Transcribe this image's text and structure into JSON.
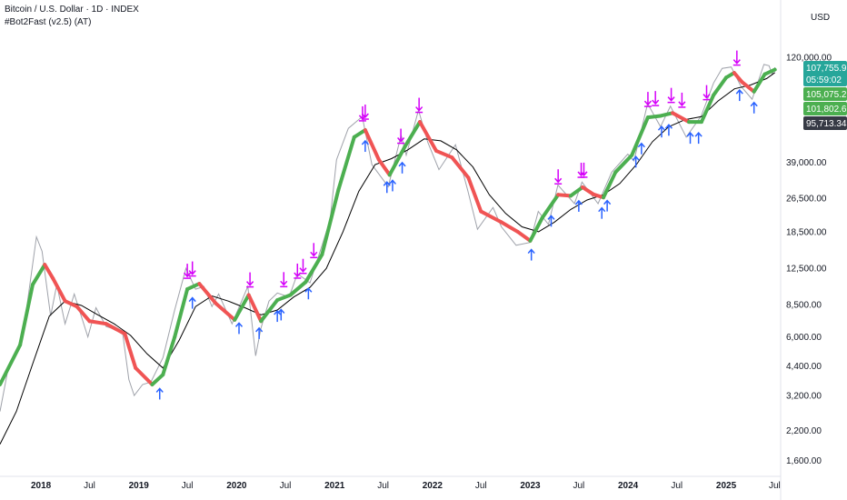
{
  "header": {
    "symbol_line": "Bitcoin / U.S. Dollar · 1D · INDEX",
    "indicator_line": "#Bot2Fast (v2.5) (AT)"
  },
  "colors": {
    "up": "#4caf50",
    "down": "#f05454",
    "slow_ma": "#000000",
    "buy_arrow": "#2962ff",
    "sell_arrow": "#d500f9",
    "price_badge": "#26a69a",
    "green_badge": "#4caf50",
    "dark_badge": "#363a45"
  },
  "chart_data": {
    "type": "line",
    "title": "Bitcoin / U.S. Dollar · 1D · INDEX",
    "y_scale": "log",
    "currency_label": "USD",
    "ylim": [
      1400,
      150000
    ],
    "xlim": [
      "2017-08-01",
      "2025-07-20"
    ],
    "y_ticks": [
      {
        "v": 120000,
        "label": "120,000.00"
      },
      {
        "v": 39000,
        "label": "39,000.00"
      },
      {
        "v": 26500,
        "label": "26,500.00"
      },
      {
        "v": 18500,
        "label": "18,500.00"
      },
      {
        "v": 12500,
        "label": "12,500.00"
      },
      {
        "v": 8500,
        "label": "8,500.00"
      },
      {
        "v": 6000,
        "label": "6,000.00"
      },
      {
        "v": 4400,
        "label": "4,400.00"
      },
      {
        "v": 3200,
        "label": "3,200.00"
      },
      {
        "v": 2200,
        "label": "2,200.00"
      },
      {
        "v": 1600,
        "label": "1,600.00"
      }
    ],
    "x_ticks": [
      {
        "t": "2018-01-01",
        "label": "2018",
        "major": true
      },
      {
        "t": "2018-07-01",
        "label": "Jul",
        "major": false
      },
      {
        "t": "2019-01-01",
        "label": "2019",
        "major": true
      },
      {
        "t": "2019-07-01",
        "label": "Jul",
        "major": false
      },
      {
        "t": "2020-01-01",
        "label": "2020",
        "major": true
      },
      {
        "t": "2020-07-01",
        "label": "Jul",
        "major": false
      },
      {
        "t": "2021-01-01",
        "label": "2021",
        "major": true
      },
      {
        "t": "2021-07-01",
        "label": "Jul",
        "major": false
      },
      {
        "t": "2022-01-01",
        "label": "2022",
        "major": true
      },
      {
        "t": "2022-07-01",
        "label": "Jul",
        "major": false
      },
      {
        "t": "2023-01-01",
        "label": "2023",
        "major": true
      },
      {
        "t": "2023-07-01",
        "label": "Jul",
        "major": false
      },
      {
        "t": "2024-01-01",
        "label": "2024",
        "major": true
      },
      {
        "t": "2024-07-01",
        "label": "Jul",
        "major": false
      },
      {
        "t": "2025-01-01",
        "label": "2025",
        "major": true
      },
      {
        "t": "2025-07-01",
        "label": "Jul",
        "major": false
      }
    ],
    "price": [
      [
        "2017-08-01",
        2700
      ],
      [
        "2017-09-01",
        4300
      ],
      [
        "2017-10-01",
        5000
      ],
      [
        "2017-11-01",
        7000
      ],
      [
        "2017-12-15",
        17500
      ],
      [
        "2018-01-05",
        15000
      ],
      [
        "2018-02-06",
        7500
      ],
      [
        "2018-03-01",
        10500
      ],
      [
        "2018-04-01",
        6900
      ],
      [
        "2018-05-05",
        9500
      ],
      [
        "2018-06-25",
        6000
      ],
      [
        "2018-07-25",
        8200
      ],
      [
        "2018-09-01",
        6700
      ],
      [
        "2018-11-01",
        6350
      ],
      [
        "2018-11-25",
        3800
      ],
      [
        "2018-12-15",
        3200
      ],
      [
        "2019-01-15",
        3600
      ],
      [
        "2019-02-15",
        3700
      ],
      [
        "2019-04-01",
        4800
      ],
      [
        "2019-05-15",
        8000
      ],
      [
        "2019-06-26",
        12500
      ],
      [
        "2019-08-01",
        10000
      ],
      [
        "2019-09-01",
        10300
      ],
      [
        "2019-10-01",
        8300
      ],
      [
        "2019-10-26",
        9500
      ],
      [
        "2019-12-15",
        6900
      ],
      [
        "2020-02-12",
        10300
      ],
      [
        "2020-03-12",
        4900
      ],
      [
        "2020-04-01",
        6600
      ],
      [
        "2020-05-01",
        8800
      ],
      [
        "2020-06-01",
        9600
      ],
      [
        "2020-07-15",
        9200
      ],
      [
        "2020-08-15",
        11800
      ],
      [
        "2020-10-01",
        10700
      ],
      [
        "2020-11-15",
        16000
      ],
      [
        "2020-12-15",
        21000
      ],
      [
        "2021-01-08",
        40000
      ],
      [
        "2021-02-21",
        56000
      ],
      [
        "2021-04-14",
        63500
      ],
      [
        "2021-05-20",
        38000
      ],
      [
        "2021-07-20",
        30000
      ],
      [
        "2021-09-06",
        52000
      ],
      [
        "2021-09-25",
        42000
      ],
      [
        "2021-11-10",
        68000
      ],
      [
        "2021-12-15",
        48000
      ],
      [
        "2022-01-25",
        36000
      ],
      [
        "2022-03-28",
        47000
      ],
      [
        "2022-05-12",
        29000
      ],
      [
        "2022-06-18",
        19000
      ],
      [
        "2022-08-15",
        24000
      ],
      [
        "2022-09-15",
        19500
      ],
      [
        "2022-11-09",
        16000
      ],
      [
        "2022-12-31",
        16500
      ],
      [
        "2023-01-31",
        23000
      ],
      [
        "2023-03-10",
        20000
      ],
      [
        "2023-04-14",
        30500
      ],
      [
        "2023-06-15",
        25000
      ],
      [
        "2023-07-13",
        31500
      ],
      [
        "2023-09-11",
        25000
      ],
      [
        "2023-11-01",
        35000
      ],
      [
        "2023-12-31",
        42500
      ],
      [
        "2024-01-23",
        39500
      ],
      [
        "2024-03-14",
        73000
      ],
      [
        "2024-05-01",
        57000
      ],
      [
        "2024-06-07",
        71000
      ],
      [
        "2024-08-05",
        51000
      ],
      [
        "2024-09-30",
        64000
      ],
      [
        "2024-11-15",
        91000
      ],
      [
        "2024-12-17",
        106500
      ],
      [
        "2025-01-20",
        108000
      ],
      [
        "2025-02-25",
        88000
      ],
      [
        "2025-04-08",
        76500
      ],
      [
        "2025-05-22",
        111000
      ],
      [
        "2025-06-10",
        109500
      ],
      [
        "2025-06-22",
        100000
      ],
      [
        "2025-07-02",
        107755.91
      ]
    ],
    "fast_ma": [
      [
        "2017-08-01",
        3600
      ],
      [
        "2017-10-15",
        5500
      ],
      [
        "2017-12-01",
        10500
      ],
      [
        "2018-01-15",
        13000
      ],
      [
        "2018-02-15",
        11200
      ],
      [
        "2018-04-01",
        8800
      ],
      [
        "2018-05-15",
        8300
      ],
      [
        "2018-07-01",
        7100
      ],
      [
        "2018-09-01",
        6900
      ],
      [
        "2018-11-10",
        6200
      ],
      [
        "2018-12-20",
        4300
      ],
      [
        "2019-02-20",
        3600
      ],
      [
        "2019-04-01",
        4000
      ],
      [
        "2019-05-15",
        6000
      ],
      [
        "2019-07-01",
        10000
      ],
      [
        "2019-08-15",
        10600
      ],
      [
        "2019-10-15",
        8600
      ],
      [
        "2019-12-25",
        7200
      ],
      [
        "2020-02-15",
        9400
      ],
      [
        "2020-04-01",
        7100
      ],
      [
        "2020-06-01",
        8900
      ],
      [
        "2020-07-20",
        9400
      ],
      [
        "2020-09-15",
        10800
      ],
      [
        "2020-11-15",
        14500
      ],
      [
        "2021-01-15",
        29000
      ],
      [
        "2021-03-15",
        51000
      ],
      [
        "2021-04-25",
        55000
      ],
      [
        "2021-06-15",
        40000
      ],
      [
        "2021-07-25",
        34000
      ],
      [
        "2021-09-20",
        46000
      ],
      [
        "2021-11-15",
        60000
      ],
      [
        "2022-01-15",
        44000
      ],
      [
        "2022-03-15",
        41000
      ],
      [
        "2022-05-15",
        33000
      ],
      [
        "2022-07-01",
        23000
      ],
      [
        "2022-09-15",
        20500
      ],
      [
        "2022-11-15",
        18500
      ],
      [
        "2023-01-01",
        16800
      ],
      [
        "2023-02-15",
        21500
      ],
      [
        "2023-04-15",
        27500
      ],
      [
        "2023-06-01",
        27200
      ],
      [
        "2023-07-15",
        29800
      ],
      [
        "2023-08-25",
        27600
      ],
      [
        "2023-10-01",
        26700
      ],
      [
        "2023-11-15",
        35000
      ],
      [
        "2024-01-15",
        42000
      ],
      [
        "2024-03-15",
        63000
      ],
      [
        "2024-05-01",
        64000
      ],
      [
        "2024-06-15",
        66000
      ],
      [
        "2024-08-15",
        60000
      ],
      [
        "2024-10-01",
        60000
      ],
      [
        "2024-11-15",
        80000
      ],
      [
        "2025-01-01",
        96500
      ],
      [
        "2025-01-31",
        101500
      ],
      [
        "2025-03-01",
        92000
      ],
      [
        "2025-04-15",
        83000
      ],
      [
        "2025-05-25",
        100000
      ],
      [
        "2025-07-02",
        105075.21
      ]
    ],
    "slow_ma": [
      [
        "2017-08-01",
        1900
      ],
      [
        "2017-10-01",
        2700
      ],
      [
        "2017-12-01",
        4500
      ],
      [
        "2018-02-01",
        7500
      ],
      [
        "2018-04-01",
        8800
      ],
      [
        "2018-06-01",
        8400
      ],
      [
        "2018-08-01",
        7600
      ],
      [
        "2018-10-01",
        6900
      ],
      [
        "2018-12-01",
        6100
      ],
      [
        "2019-02-01",
        5000
      ],
      [
        "2019-04-01",
        4300
      ],
      [
        "2019-06-01",
        5800
      ],
      [
        "2019-08-01",
        8300
      ],
      [
        "2019-10-01",
        9300
      ],
      [
        "2019-12-01",
        8800
      ],
      [
        "2020-02-01",
        8200
      ],
      [
        "2020-04-01",
        7600
      ],
      [
        "2020-06-01",
        8000
      ],
      [
        "2020-08-01",
        9200
      ],
      [
        "2020-10-01",
        10200
      ],
      [
        "2020-12-01",
        12500
      ],
      [
        "2021-02-01",
        18500
      ],
      [
        "2021-04-01",
        28500
      ],
      [
        "2021-06-01",
        38000
      ],
      [
        "2021-08-01",
        40500
      ],
      [
        "2021-10-01",
        44500
      ],
      [
        "2021-12-01",
        50000
      ],
      [
        "2022-02-01",
        49000
      ],
      [
        "2022-04-01",
        44500
      ],
      [
        "2022-06-01",
        37000
      ],
      [
        "2022-08-01",
        27500
      ],
      [
        "2022-10-01",
        22500
      ],
      [
        "2022-12-01",
        19500
      ],
      [
        "2023-02-01",
        18500
      ],
      [
        "2023-04-01",
        20500
      ],
      [
        "2023-06-01",
        23500
      ],
      [
        "2023-08-01",
        26000
      ],
      [
        "2023-10-01",
        27500
      ],
      [
        "2023-12-01",
        31000
      ],
      [
        "2024-02-01",
        38000
      ],
      [
        "2024-04-01",
        48500
      ],
      [
        "2024-06-01",
        57000
      ],
      [
        "2024-08-01",
        61500
      ],
      [
        "2024-10-01",
        63500
      ],
      [
        "2024-12-01",
        75000
      ],
      [
        "2025-02-01",
        85500
      ],
      [
        "2025-04-01",
        89000
      ],
      [
        "2025-06-01",
        95500
      ],
      [
        "2025-07-02",
        101802.65
      ]
    ],
    "buy_signals": [
      "2019-03-20",
      "2019-07-20",
      "2020-01-10",
      "2020-03-25",
      "2020-06-01",
      "2020-06-15",
      "2020-09-25",
      "2021-04-25",
      "2021-07-15",
      "2021-08-05",
      "2021-09-10",
      "2023-01-05",
      "2023-03-20",
      "2023-07-01",
      "2023-09-25",
      "2023-10-15",
      "2024-01-30",
      "2024-02-20",
      "2024-05-05",
      "2024-06-01",
      "2024-08-20",
      "2024-09-20",
      "2025-02-20",
      "2025-04-15"
    ],
    "sell_signals": [
      "2019-07-01",
      "2019-07-20",
      "2020-02-20",
      "2020-06-25",
      "2020-08-15",
      "2020-09-05",
      "2020-10-15",
      "2021-04-15",
      "2021-04-25",
      "2021-09-05",
      "2021-11-12",
      "2023-04-15",
      "2023-07-10",
      "2023-07-20",
      "2024-03-15",
      "2024-04-12",
      "2024-06-10",
      "2024-07-20",
      "2024-10-20",
      "2025-02-10"
    ],
    "price_badges": [
      {
        "label": "107,755.91",
        "value": 107755.91,
        "kind": "price_badge",
        "sub": "05:59:02"
      },
      {
        "label": "105,075.21",
        "value": 105075.21,
        "kind": "green_badge",
        "sub": ""
      },
      {
        "label": "101,802.65",
        "value": 101802.65,
        "kind": "green_badge",
        "sub": ""
      },
      {
        "label": "95,713.34",
        "value": 95713.34,
        "kind": "dark_badge",
        "sub": ""
      }
    ]
  }
}
